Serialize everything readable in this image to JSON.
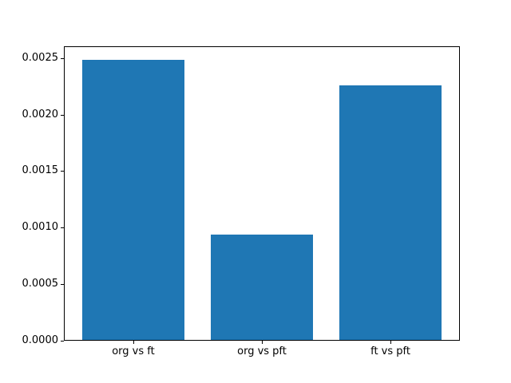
{
  "chart_data": {
    "type": "bar",
    "categories": [
      "org vs ft",
      "org vs pft",
      "ft vs pft"
    ],
    "values": [
      0.00248,
      0.00093,
      0.00225
    ],
    "title": "",
    "xlabel": "",
    "ylabel": "",
    "ylim": [
      0,
      0.002604
    ],
    "xlim": [
      -0.54,
      2.54
    ],
    "yticks": [
      0,
      0.0005,
      0.001,
      0.0015,
      0.002,
      0.0025
    ],
    "ytick_labels": [
      "0.0000",
      "0.0005",
      "0.0010",
      "0.0015",
      "0.0020",
      "0.0025"
    ],
    "bar_color": "#1f77b4",
    "bar_width_fraction": 0.8,
    "grid": false,
    "legend": null,
    "frame_color": "#000000",
    "background_color": "#ffffff"
  }
}
